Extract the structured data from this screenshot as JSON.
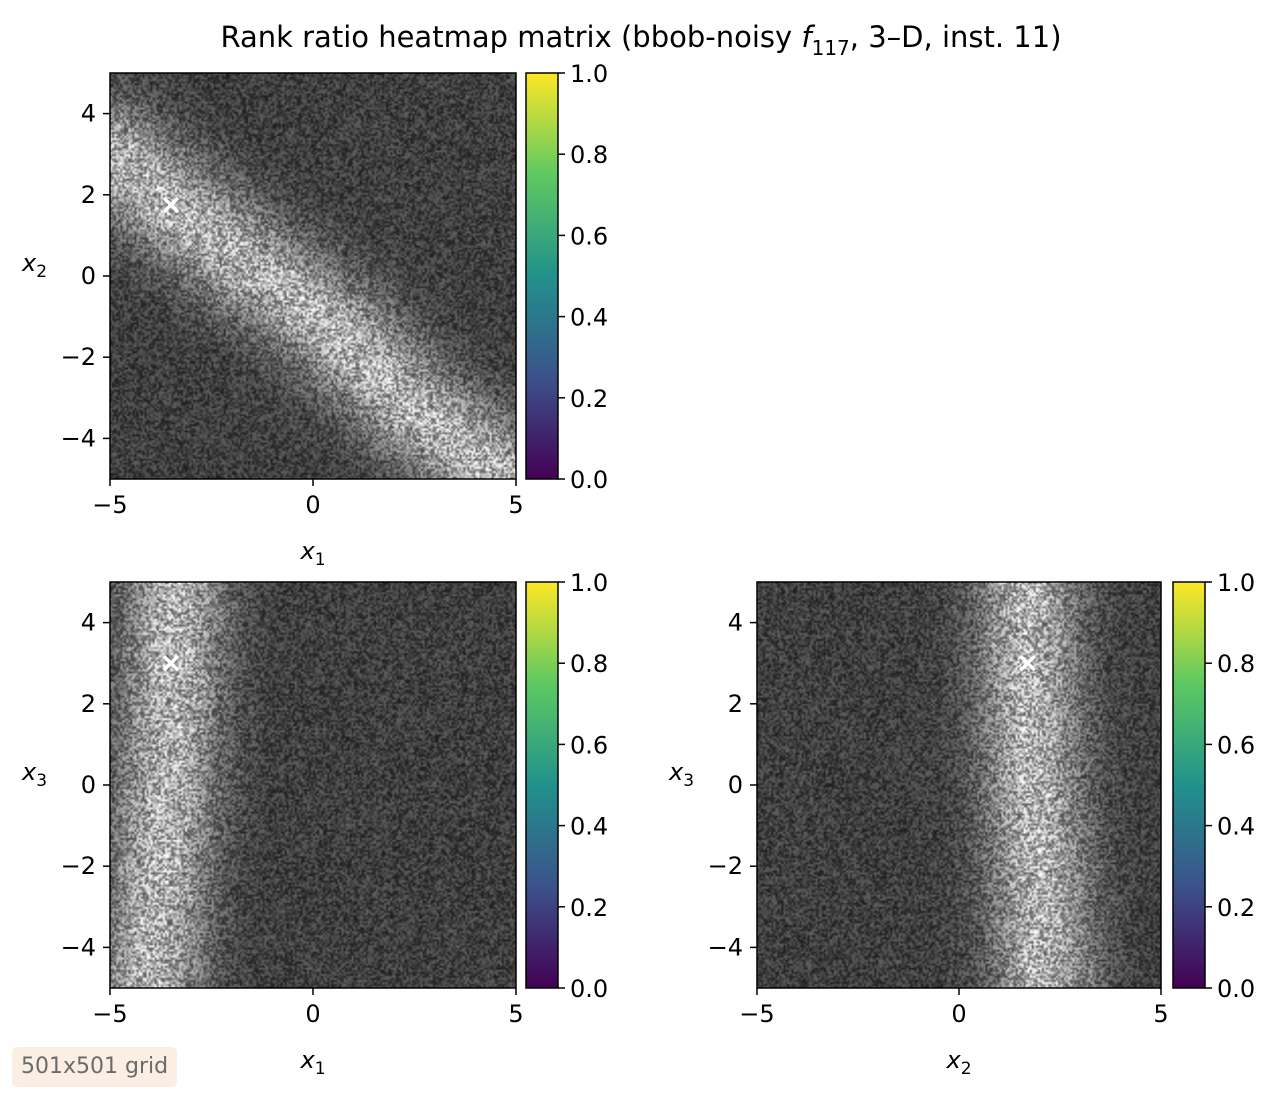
{
  "figure": {
    "title_prefix": "Rank ratio heatmap matrix (bbob-noisy ",
    "title_f": "f",
    "title_sub": "117",
    "title_suffix": ", 3–D, inst. 11)",
    "grid_label": "501x501 grid"
  },
  "colors": {
    "background": "#ffffff",
    "heatmap_base": "#2a2a2a",
    "heatmap_highlight": "#cfcfcf",
    "marker": "#ffffff",
    "viridis": [
      "#440154",
      "#3b528b",
      "#21918c",
      "#5ec962",
      "#fde725"
    ]
  },
  "chart_data": [
    {
      "type": "heatmap",
      "id": "x1_x2",
      "x_var": "x",
      "x_sub": "1",
      "y_var": "x",
      "y_sub": "2",
      "xlim": [
        -5,
        5
      ],
      "ylim": [
        -5,
        5
      ],
      "xticks": [
        -5,
        0,
        5
      ],
      "xtick_labels": [
        "−5",
        "0",
        "5"
      ],
      "yticks": [
        -4,
        -2,
        0,
        2,
        4
      ],
      "ytick_labels": [
        "−4",
        "−2",
        "0",
        "2",
        "4"
      ],
      "grid": false,
      "colormap": "viridis",
      "color_range": [
        0,
        1
      ],
      "colorbar_ticks": [
        0,
        0.2,
        0.4,
        0.6,
        0.8,
        1
      ],
      "colorbar_tick_labels": [
        "0.0",
        "0.2",
        "0.4",
        "0.6",
        "0.8",
        "1.0"
      ],
      "ridge_points": [
        [
          -5,
          3.0
        ],
        [
          -3.5,
          1.75
        ],
        [
          -1.5,
          0.2
        ],
        [
          0.5,
          -1.3
        ],
        [
          2.5,
          -3.3
        ],
        [
          5,
          -5.2
        ]
      ],
      "optimum": {
        "x": -3.5,
        "y": 1.75,
        "marker": "x"
      }
    },
    {
      "type": "heatmap",
      "id": "x1_x3",
      "x_var": "x",
      "x_sub": "1",
      "y_var": "x",
      "y_sub": "3",
      "xlim": [
        -5,
        5
      ],
      "ylim": [
        -5,
        5
      ],
      "xticks": [
        -5,
        0,
        5
      ],
      "xtick_labels": [
        "−5",
        "0",
        "5"
      ],
      "yticks": [
        -4,
        -2,
        0,
        2,
        4
      ],
      "ytick_labels": [
        "−4",
        "−2",
        "0",
        "2",
        "4"
      ],
      "grid": false,
      "colormap": "viridis",
      "color_range": [
        0,
        1
      ],
      "colorbar_ticks": [
        0,
        0.2,
        0.4,
        0.6,
        0.8,
        1
      ],
      "colorbar_tick_labels": [
        "0.0",
        "0.2",
        "0.4",
        "0.6",
        "0.8",
        "1.0"
      ],
      "ridge_points": [
        [
          -3.4,
          5
        ],
        [
          -3.45,
          2.5
        ],
        [
          -3.6,
          0
        ],
        [
          -3.8,
          -2.5
        ],
        [
          -4.0,
          -5
        ]
      ],
      "optimum": {
        "x": -3.5,
        "y": 3.0,
        "marker": "x"
      }
    },
    {
      "type": "heatmap",
      "id": "x2_x3",
      "x_var": "x",
      "x_sub": "2",
      "y_var": "x",
      "y_sub": "3",
      "xlim": [
        -5,
        5
      ],
      "ylim": [
        -5,
        5
      ],
      "xticks": [
        -5,
        0,
        5
      ],
      "xtick_labels": [
        "−5",
        "0",
        "5"
      ],
      "yticks": [
        -4,
        -2,
        0,
        2,
        4
      ],
      "ytick_labels": [
        "−4",
        "−2",
        "0",
        "2",
        "4"
      ],
      "grid": false,
      "colormap": "viridis",
      "color_range": [
        0,
        1
      ],
      "colorbar_ticks": [
        0,
        0.2,
        0.4,
        0.6,
        0.8,
        1
      ],
      "colorbar_tick_labels": [
        "0.0",
        "0.2",
        "0.4",
        "0.6",
        "0.8",
        "1.0"
      ],
      "ridge_points": [
        [
          1.7,
          5
        ],
        [
          1.75,
          2.5
        ],
        [
          1.85,
          0
        ],
        [
          2.0,
          -2.5
        ],
        [
          2.1,
          -5
        ]
      ],
      "optimum": {
        "x": 1.7,
        "y": 3.0,
        "marker": "x"
      }
    }
  ]
}
